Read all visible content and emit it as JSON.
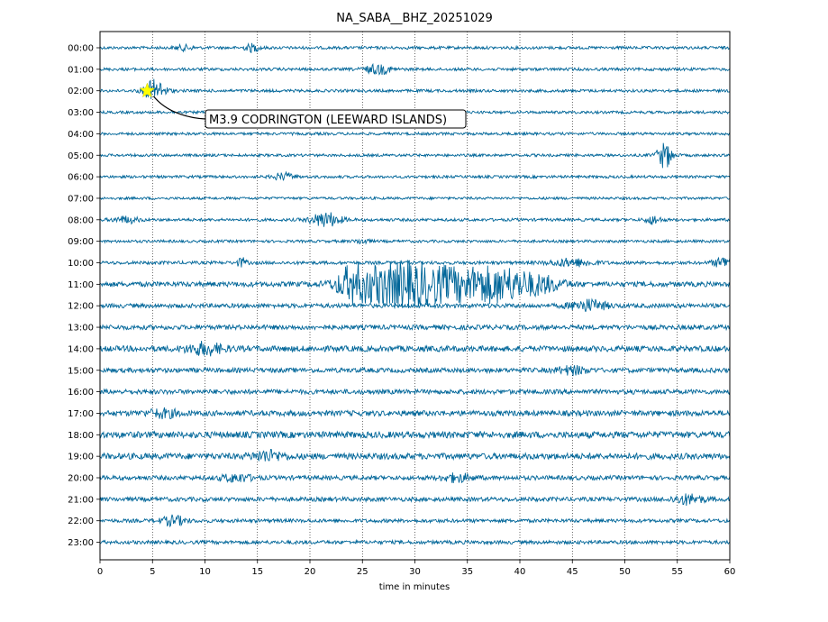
{
  "chart_data": {
    "type": "line",
    "title": "NA_SABA__BHZ_20251029",
    "xlabel": "time in minutes",
    "ylabel": "",
    "xlim": [
      0,
      60
    ],
    "x_ticks": [
      "0",
      "5",
      "10",
      "15",
      "20",
      "25",
      "30",
      "35",
      "40",
      "45",
      "50",
      "55",
      "60"
    ],
    "y_ticks": [
      "00:00",
      "01:00",
      "02:00",
      "03:00",
      "04:00",
      "05:00",
      "06:00",
      "07:00",
      "08:00",
      "09:00",
      "10:00",
      "11:00",
      "12:00",
      "13:00",
      "14:00",
      "15:00",
      "16:00",
      "17:00",
      "18:00",
      "19:00",
      "20:00",
      "21:00",
      "22:00",
      "23:00"
    ],
    "grid": "vertical dotted lines at each x tick",
    "trace_color": "#006699",
    "traces": [
      {
        "hour": "00:00",
        "noise": 1.6,
        "bursts": [
          {
            "t": 8,
            "amp": 2.5,
            "w": 0.6
          },
          {
            "t": 14.5,
            "amp": 4,
            "w": 0.5
          }
        ]
      },
      {
        "hour": "01:00",
        "noise": 1.6,
        "bursts": [
          {
            "t": 26.5,
            "amp": 5,
            "w": 0.9
          }
        ]
      },
      {
        "hour": "02:00",
        "noise": 1.6,
        "bursts": [
          {
            "t": 5.2,
            "amp": 12,
            "w": 0.7
          }
        ]
      },
      {
        "hour": "03:00",
        "noise": 1.5,
        "bursts": []
      },
      {
        "hour": "04:00",
        "noise": 1.5,
        "bursts": []
      },
      {
        "hour": "05:00",
        "noise": 1.5,
        "bursts": [
          {
            "t": 53.8,
            "amp": 14,
            "w": 0.5
          }
        ]
      },
      {
        "hour": "06:00",
        "noise": 1.5,
        "bursts": [
          {
            "t": 17.5,
            "amp": 4,
            "w": 0.7
          }
        ]
      },
      {
        "hour": "07:00",
        "noise": 1.4,
        "bursts": []
      },
      {
        "hour": "08:00",
        "noise": 1.6,
        "bursts": [
          {
            "t": 2.5,
            "amp": 3.5,
            "w": 0.8
          },
          {
            "t": 21.5,
            "amp": 8,
            "w": 1.0
          },
          {
            "t": 52.7,
            "amp": 4.5,
            "w": 0.5
          }
        ]
      },
      {
        "hour": "09:00",
        "noise": 1.5,
        "bursts": [
          {
            "t": 25,
            "amp": 2.5,
            "w": 0.5
          }
        ]
      },
      {
        "hour": "10:00",
        "noise": 1.8,
        "bursts": [
          {
            "t": 13.5,
            "amp": 5,
            "w": 0.3
          },
          {
            "t": 45,
            "amp": 4,
            "w": 1.5
          },
          {
            "t": 59.5,
            "amp": 6,
            "w": 0.7
          }
        ]
      },
      {
        "hour": "11:00",
        "noise": 2.8,
        "bursts": [
          {
            "t": 24,
            "amp": 14,
            "w": 1.0
          },
          {
            "t": 27.5,
            "amp": 20,
            "w": 2.5
          },
          {
            "t": 31,
            "amp": 12,
            "w": 2.0
          },
          {
            "t": 35,
            "amp": 14,
            "w": 2.2
          },
          {
            "t": 38.5,
            "amp": 14,
            "w": 1.8
          },
          {
            "t": 42,
            "amp": 8,
            "w": 1.5
          }
        ]
      },
      {
        "hour": "12:00",
        "noise": 2.4,
        "bursts": [
          {
            "t": 46.5,
            "amp": 6,
            "w": 1.2
          }
        ]
      },
      {
        "hour": "13:00",
        "noise": 2.6,
        "bursts": []
      },
      {
        "hour": "14:00",
        "noise": 3.2,
        "bursts": [
          {
            "t": 10,
            "amp": 6,
            "w": 1.2
          }
        ]
      },
      {
        "hour": "15:00",
        "noise": 2.6,
        "bursts": [
          {
            "t": 45,
            "amp": 4,
            "w": 1.0
          }
        ]
      },
      {
        "hour": "16:00",
        "noise": 2.6,
        "bursts": []
      },
      {
        "hour": "17:00",
        "noise": 3.0,
        "bursts": [
          {
            "t": 6,
            "amp": 4,
            "w": 1.0
          }
        ]
      },
      {
        "hour": "18:00",
        "noise": 3.6,
        "bursts": []
      },
      {
        "hour": "19:00",
        "noise": 3.4,
        "bursts": [
          {
            "t": 16,
            "amp": 5,
            "w": 1.0
          }
        ]
      },
      {
        "hour": "20:00",
        "noise": 2.4,
        "bursts": [
          {
            "t": 13,
            "amp": 4,
            "w": 1.0
          },
          {
            "t": 34,
            "amp": 4,
            "w": 1.0
          }
        ]
      },
      {
        "hour": "21:00",
        "noise": 2.4,
        "bursts": [
          {
            "t": 56,
            "amp": 5,
            "w": 1.0
          }
        ]
      },
      {
        "hour": "22:00",
        "noise": 2.0,
        "bursts": [
          {
            "t": 7,
            "amp": 5,
            "w": 0.8
          }
        ]
      },
      {
        "hour": "23:00",
        "noise": 2.0,
        "bursts": []
      }
    ],
    "event_marker": {
      "x": 4.5,
      "hour": "02:00",
      "color": "#ffff00",
      "shape": "star"
    },
    "annotation": {
      "text": "M3.9 CODRINGTON (LEEWARD ISLANDS)"
    }
  }
}
